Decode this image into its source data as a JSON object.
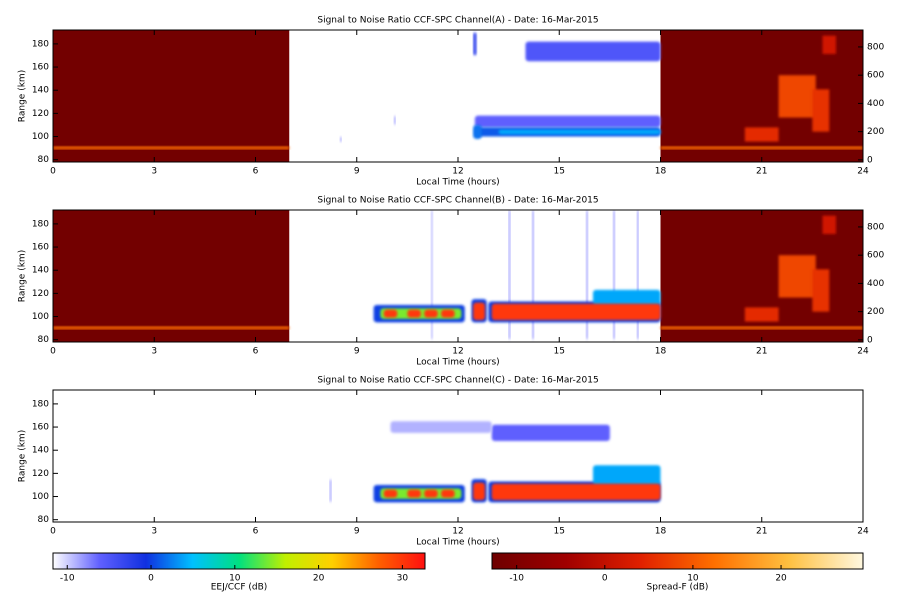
{
  "chart_data": [
    {
      "type": "heatmap",
      "title": "Signal to Noise Ratio CCF-SPC Channel(A) - Date: 16-Mar-2015",
      "xlabel": "Local Time (hours)",
      "ylabel": "Range (km)",
      "xlim": [
        0,
        24
      ],
      "xticks": [
        0,
        3,
        6,
        9,
        12,
        15,
        18,
        21,
        24
      ],
      "ylim": [
        78,
        192
      ],
      "yticks": [
        80,
        100,
        120,
        140,
        160,
        180
      ],
      "y2lim": [
        -15,
        920
      ],
      "y2ticks": [
        0,
        200,
        400,
        600,
        800
      ],
      "spreadf_patches": [
        {
          "t": [
            0,
            7
          ],
          "r": [
            -15,
            920
          ],
          "v": -12
        },
        {
          "t": [
            18,
            24
          ],
          "r": [
            -15,
            920
          ],
          "v": -12
        },
        {
          "t": [
            0,
            7
          ],
          "r": [
            75,
            95
          ],
          "v": 12
        },
        {
          "t": [
            18,
            24
          ],
          "r": [
            75,
            95
          ],
          "v": 12
        },
        {
          "t": [
            20.5,
            21.5
          ],
          "r": [
            130,
            230
          ],
          "v": 5
        },
        {
          "t": [
            21.5,
            22.6
          ],
          "r": [
            300,
            600
          ],
          "v": 8
        },
        {
          "t": [
            22.5,
            23
          ],
          "r": [
            200,
            500
          ],
          "v": 6
        },
        {
          "t": [
            22.8,
            23.2
          ],
          "r": [
            750,
            880
          ],
          "v": 2
        }
      ],
      "eej_patches": [
        {
          "t": [
            12.5,
            18
          ],
          "r": [
            108,
            118
          ],
          "v": -6
        },
        {
          "t": [
            12.5,
            18
          ],
          "r": [
            100,
            108
          ],
          "v": 1
        },
        {
          "t": [
            13.2,
            18
          ],
          "r": [
            102,
            106
          ],
          "v": 4
        },
        {
          "t": [
            12.45,
            12.7
          ],
          "r": [
            98,
            110
          ],
          "v": 2
        },
        {
          "t": [
            14,
            18
          ],
          "r": [
            165,
            182
          ],
          "v": -5
        },
        {
          "t": [
            12.45,
            12.55
          ],
          "r": [
            170,
            190
          ],
          "v": -3
        },
        {
          "t": [
            10.1,
            10.15
          ],
          "r": [
            110,
            118
          ],
          "v": -8
        },
        {
          "t": [
            8.5,
            8.55
          ],
          "r": [
            95,
            100
          ],
          "v": -8
        }
      ]
    },
    {
      "type": "heatmap",
      "title": "Signal to Noise Ratio CCF-SPC Channel(B) - Date: 16-Mar-2015",
      "xlabel": "Local Time (hours)",
      "ylabel": "Range (km)",
      "xlim": [
        0,
        24
      ],
      "xticks": [
        0,
        3,
        6,
        9,
        12,
        15,
        18,
        21,
        24
      ],
      "ylim": [
        78,
        192
      ],
      "yticks": [
        80,
        100,
        120,
        140,
        160,
        180
      ],
      "y2lim": [
        -15,
        920
      ],
      "y2ticks": [
        0,
        200,
        400,
        600,
        800
      ],
      "spreadf_patches": [
        {
          "t": [
            0,
            7
          ],
          "r": [
            -15,
            920
          ],
          "v": -12
        },
        {
          "t": [
            18,
            24
          ],
          "r": [
            -15,
            920
          ],
          "v": -12
        },
        {
          "t": [
            0,
            7
          ],
          "r": [
            75,
            95
          ],
          "v": 12
        },
        {
          "t": [
            18,
            24
          ],
          "r": [
            75,
            95
          ],
          "v": 12
        },
        {
          "t": [
            20.5,
            21.5
          ],
          "r": [
            130,
            230
          ],
          "v": 5
        },
        {
          "t": [
            21.5,
            22.6
          ],
          "r": [
            300,
            600
          ],
          "v": 8
        },
        {
          "t": [
            22.5,
            23
          ],
          "r": [
            200,
            500
          ],
          "v": 6
        },
        {
          "t": [
            22.8,
            23.2
          ],
          "r": [
            750,
            880
          ],
          "v": 2
        }
      ],
      "eej_patches": [
        {
          "t": [
            13.5,
            13.55
          ],
          "r": [
            80,
            192
          ],
          "v": -8
        },
        {
          "t": [
            14.2,
            14.25
          ],
          "r": [
            80,
            192
          ],
          "v": -8
        },
        {
          "t": [
            15.8,
            15.85
          ],
          "r": [
            80,
            192
          ],
          "v": -8
        },
        {
          "t": [
            16.6,
            16.65
          ],
          "r": [
            80,
            192
          ],
          "v": -8
        },
        {
          "t": [
            17.3,
            17.35
          ],
          "r": [
            80,
            192
          ],
          "v": -8
        },
        {
          "t": [
            11.2,
            11.25
          ],
          "r": [
            80,
            192
          ],
          "v": -9
        },
        {
          "t": [
            9.5,
            12.2
          ],
          "r": [
            95,
            110
          ],
          "v": 0
        },
        {
          "t": [
            9.7,
            12.1
          ],
          "r": [
            98,
            107
          ],
          "v": 14
        },
        {
          "t": [
            9.8,
            10.2
          ],
          "r": [
            99,
            106
          ],
          "v": 30
        },
        {
          "t": [
            10.5,
            10.9
          ],
          "r": [
            99,
            106
          ],
          "v": 30
        },
        {
          "t": [
            11.0,
            11.4
          ],
          "r": [
            99,
            106
          ],
          "v": 30
        },
        {
          "t": [
            11.5,
            11.9
          ],
          "r": [
            99,
            106
          ],
          "v": 30
        },
        {
          "t": [
            12.4,
            12.85
          ],
          "r": [
            95,
            115
          ],
          "v": 0
        },
        {
          "t": [
            12.45,
            12.8
          ],
          "r": [
            97,
            112
          ],
          "v": 30
        },
        {
          "t": [
            12.9,
            18
          ],
          "r": [
            95,
            113
          ],
          "v": 0
        },
        {
          "t": [
            16,
            18
          ],
          "r": [
            110,
            123
          ],
          "v": 4
        },
        {
          "t": [
            13,
            18
          ],
          "r": [
            97,
            111
          ],
          "v": 30
        }
      ]
    },
    {
      "type": "heatmap",
      "title": "Signal to Noise Ratio CCF-SPC Channel(C) - Date: 16-Mar-2015",
      "xlabel": "Local Time (hours)",
      "ylabel": "Range (km)",
      "xlim": [
        0,
        24
      ],
      "xticks": [
        0,
        3,
        6,
        9,
        12,
        15,
        18,
        21,
        24
      ],
      "ylim": [
        78,
        192
      ],
      "yticks": [
        80,
        100,
        120,
        140,
        160,
        180
      ],
      "spreadf_patches": [],
      "eej_patches": [
        {
          "t": [
            13,
            16.5
          ],
          "r": [
            148,
            162
          ],
          "v": -6
        },
        {
          "t": [
            10,
            13
          ],
          "r": [
            155,
            165
          ],
          "v": -9
        },
        {
          "t": [
            8.2,
            8.25
          ],
          "r": [
            95,
            115
          ],
          "v": -8
        },
        {
          "t": [
            9.5,
            12.2
          ],
          "r": [
            95,
            110
          ],
          "v": 0
        },
        {
          "t": [
            9.7,
            12.1
          ],
          "r": [
            98,
            107
          ],
          "v": 14
        },
        {
          "t": [
            9.8,
            10.2
          ],
          "r": [
            99,
            106
          ],
          "v": 30
        },
        {
          "t": [
            10.5,
            10.9
          ],
          "r": [
            99,
            106
          ],
          "v": 30
        },
        {
          "t": [
            11.0,
            11.4
          ],
          "r": [
            99,
            106
          ],
          "v": 30
        },
        {
          "t": [
            11.5,
            11.9
          ],
          "r": [
            99,
            106
          ],
          "v": 30
        },
        {
          "t": [
            12.4,
            12.85
          ],
          "r": [
            95,
            115
          ],
          "v": 0
        },
        {
          "t": [
            12.45,
            12.8
          ],
          "r": [
            97,
            112
          ],
          "v": 30
        },
        {
          "t": [
            12.9,
            18
          ],
          "r": [
            95,
            113
          ],
          "v": 0
        },
        {
          "t": [
            16,
            18
          ],
          "r": [
            110,
            127
          ],
          "v": 4
        },
        {
          "t": [
            13,
            18
          ],
          "r": [
            97,
            111
          ],
          "v": 30
        }
      ]
    },
    {
      "type": "colorbar",
      "label": "EEJ/CCF (dB)",
      "xlim": [
        -11.7,
        32.7
      ],
      "xticks": [
        -10,
        0,
        10,
        20,
        30
      ],
      "colors": [
        "#ffffff",
        "#6060ff",
        "#1030e0",
        "#00c0ff",
        "#00e080",
        "#c0f000",
        "#ffd000",
        "#ff6000",
        "#ff1010"
      ]
    },
    {
      "type": "colorbar",
      "label": "Spread-F (dB)",
      "xlim": [
        -12.8,
        29.3
      ],
      "xticks": [
        -10,
        0,
        10,
        20
      ],
      "colors": [
        "#6e0000",
        "#a00000",
        "#e02000",
        "#ff7000",
        "#ffc040",
        "#fff8e0"
      ]
    }
  ]
}
